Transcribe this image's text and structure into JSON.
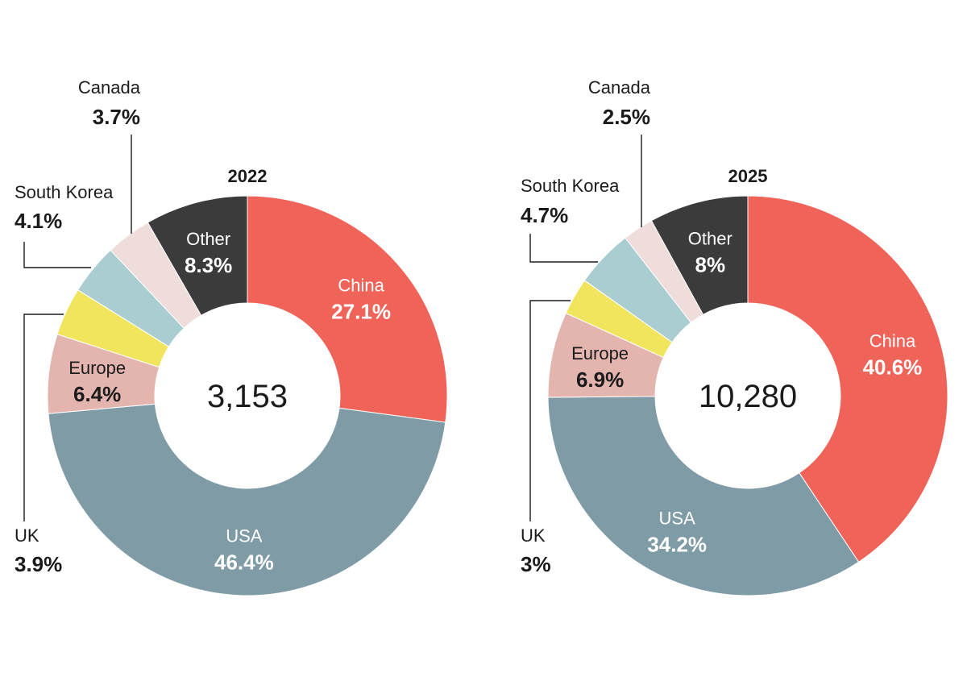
{
  "colors": {
    "China": "#ef6359",
    "USA": "#7f9ca6",
    "Europe": "#e4b5ae",
    "UK": "#f2e55e",
    "South Korea": "#a9cdd1",
    "Canada": "#efdddb",
    "Other": "#3b3b3b"
  },
  "chart_data": [
    {
      "type": "pie",
      "title": "2022",
      "total_label": "3,153",
      "slices": [
        {
          "label": "China",
          "value": 27.1,
          "display": "27.1%"
        },
        {
          "label": "USA",
          "value": 46.4,
          "display": "46.4%"
        },
        {
          "label": "Europe",
          "value": 6.4,
          "display": "6.4%"
        },
        {
          "label": "UK",
          "value": 3.9,
          "display": "3.9%"
        },
        {
          "label": "South Korea",
          "value": 4.1,
          "display": "4.1%"
        },
        {
          "label": "Canada",
          "value": 3.7,
          "display": "3.7%"
        },
        {
          "label": "Other",
          "value": 8.3,
          "display": "8.3%"
        }
      ]
    },
    {
      "type": "pie",
      "title": "2025",
      "total_label": "10,280",
      "slices": [
        {
          "label": "China",
          "value": 40.6,
          "display": "40.6%"
        },
        {
          "label": "USA",
          "value": 34.2,
          "display": "34.2%"
        },
        {
          "label": "Europe",
          "value": 6.9,
          "display": "6.9%"
        },
        {
          "label": "UK",
          "value": 3,
          "display": "3%"
        },
        {
          "label": "South Korea",
          "value": 4.7,
          "display": "4.7%"
        },
        {
          "label": "Canada",
          "value": 2.5,
          "display": "2.5%"
        },
        {
          "label": "Other",
          "value": 8,
          "display": "8%"
        }
      ]
    }
  ]
}
